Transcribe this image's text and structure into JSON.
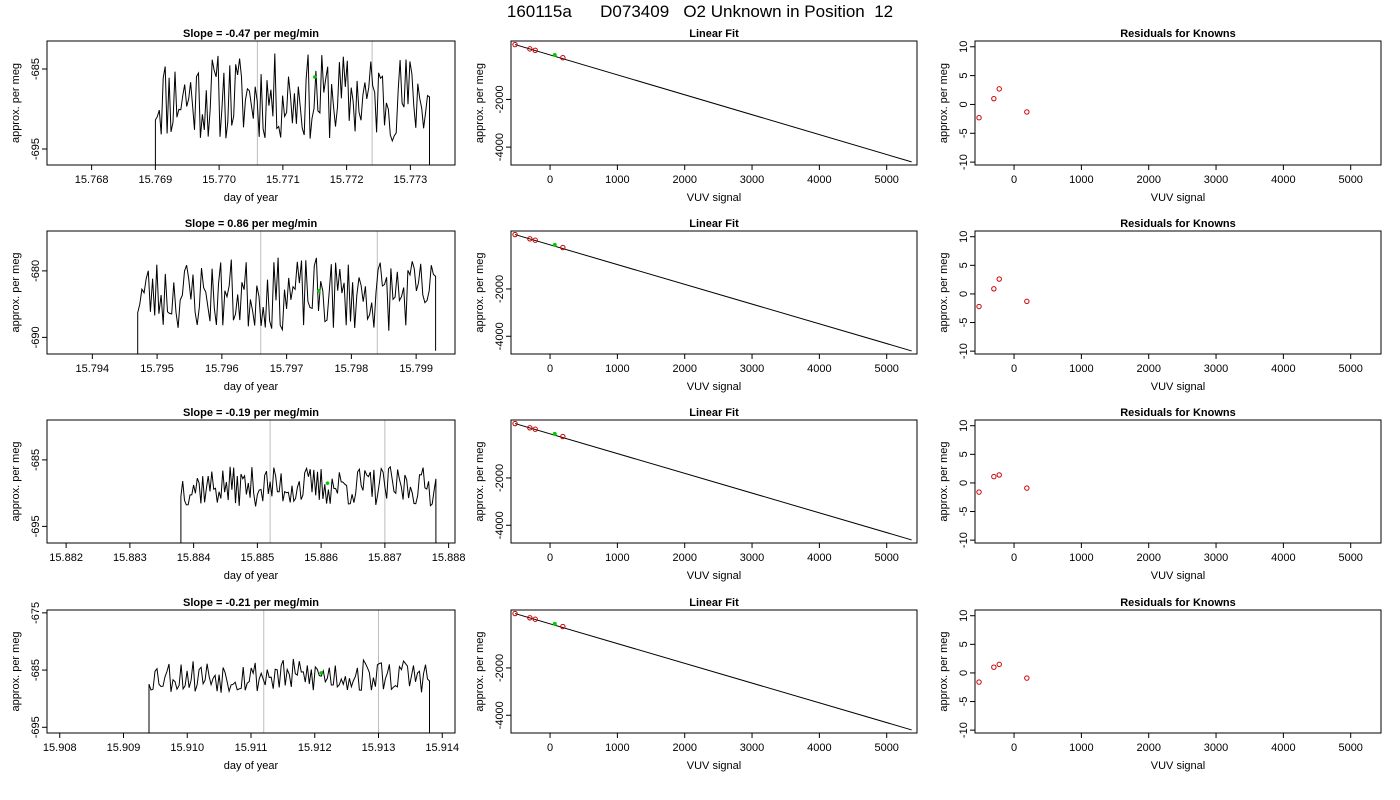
{
  "figure": {
    "title": "160115a      D073409   O2 Unknown in Position  12"
  },
  "colors": {
    "line": "#000000",
    "unknown_point": "#00cc00",
    "known_point": "#cc0000",
    "vertical_marker": "#bebebe"
  },
  "chart_data": [
    {
      "type": "line",
      "title": "Slope =  -0.47  per meg/min",
      "xlabel": "day of year",
      "ylabel": "approx. per meg",
      "xlim": [
        15.7673,
        15.7737
      ],
      "ylim": [
        -697,
        -681.5
      ],
      "xticks": [
        "15.768",
        "15.769",
        "15.770",
        "15.771",
        "15.772",
        "15.773"
      ],
      "xtick_values": [
        15.768,
        15.769,
        15.77,
        15.771,
        15.772,
        15.773
      ],
      "yticks": [
        "-695",
        "-685"
      ],
      "ytick_values": [
        -695,
        -685
      ],
      "vlines": [
        15.7706,
        15.7724
      ],
      "series": [
        {
          "x_start": 15.769,
          "x_end": 15.7733,
          "mean": -688.5,
          "amplitude": 5.5,
          "seed": 11,
          "start_y": -697,
          "end_y": -697
        }
      ],
      "unknown_point": {
        "x": 15.7715,
        "y": -686
      }
    },
    {
      "type": "scatter",
      "title": "Linear Fit",
      "xlabel": "VUV signal",
      "ylabel": "approx. per meg",
      "xlim": [
        -580,
        5450
      ],
      "ylim": [
        -4750,
        450
      ],
      "xticks": [
        "0",
        "1000",
        "2000",
        "3000",
        "4000",
        "5000"
      ],
      "xtick_values": [
        0,
        1000,
        2000,
        3000,
        4000,
        5000
      ],
      "yticks": [
        "-4000",
        "-2000"
      ],
      "ytick_values": [
        -4000,
        -2000
      ],
      "fit_line": {
        "x": [
          -520,
          5370
        ],
        "y": [
          300,
          -4620
        ]
      },
      "knowns": {
        "x": [
          -520,
          -300,
          -220,
          190
        ],
        "y": [
          300,
          120,
          60,
          -250
        ]
      },
      "unknown_point": {
        "x": 70,
        "y": -135
      }
    },
    {
      "type": "scatter",
      "title": "Residuals for Knowns",
      "xlabel": "VUV signal",
      "ylabel": "approx. per meg",
      "xlim": [
        -580,
        5450
      ],
      "ylim": [
        -10.5,
        11
      ],
      "xticks": [
        "0",
        "1000",
        "2000",
        "3000",
        "4000",
        "5000"
      ],
      "xtick_values": [
        0,
        1000,
        2000,
        3000,
        4000,
        5000
      ],
      "yticks": [
        "-10",
        "-5",
        "0",
        "5",
        "10"
      ],
      "ytick_values": [
        -10,
        -5,
        0,
        5,
        10
      ],
      "points": {
        "x": [
          -520,
          -300,
          -220,
          190
        ],
        "y": [
          -2.3,
          1.0,
          2.7,
          -1.3
        ]
      }
    },
    {
      "type": "line",
      "title": "Slope =  0.86  per meg/min",
      "xlabel": "day of year",
      "ylabel": "approx. per meg",
      "xlim": [
        15.7933,
        15.7996
      ],
      "ylim": [
        -692.5,
        -674
      ],
      "xticks": [
        "15.794",
        "15.795",
        "15.796",
        "15.797",
        "15.798",
        "15.799"
      ],
      "xtick_values": [
        15.794,
        15.795,
        15.796,
        15.797,
        15.798,
        15.799
      ],
      "yticks": [
        "-690",
        "-680"
      ],
      "ytick_values": [
        -690,
        -680
      ],
      "vlines": [
        15.7966,
        15.7984
      ],
      "series": [
        {
          "x_start": 15.7947,
          "x_end": 15.7993,
          "mean": -683.5,
          "amplitude": 5.5,
          "seed": 23,
          "start_y": -693,
          "end_y": -692
        }
      ],
      "unknown_point": {
        "x": 15.7975,
        "y": -683
      }
    },
    {
      "type": "scatter",
      "title": "Linear Fit",
      "xlabel": "VUV signal",
      "ylabel": "approx. per meg",
      "xlim": [
        -580,
        5450
      ],
      "ylim": [
        -4750,
        450
      ],
      "xticks": [
        "0",
        "1000",
        "2000",
        "3000",
        "4000",
        "5000"
      ],
      "xtick_values": [
        0,
        1000,
        2000,
        3000,
        4000,
        5000
      ],
      "yticks": [
        "-4000",
        "-2000"
      ],
      "ytick_values": [
        -4000,
        -2000
      ],
      "fit_line": {
        "x": [
          -520,
          5370
        ],
        "y": [
          300,
          -4620
        ]
      },
      "knowns": {
        "x": [
          -520,
          -300,
          -220,
          190
        ],
        "y": [
          300,
          120,
          60,
          -250
        ]
      },
      "unknown_point": {
        "x": 70,
        "y": -135
      }
    },
    {
      "type": "scatter",
      "title": "Residuals for Knowns",
      "xlabel": "VUV signal",
      "ylabel": "approx. per meg",
      "xlim": [
        -580,
        5450
      ],
      "ylim": [
        -10.5,
        11
      ],
      "xticks": [
        "0",
        "1000",
        "2000",
        "3000",
        "4000",
        "5000"
      ],
      "xtick_values": [
        0,
        1000,
        2000,
        3000,
        4000,
        5000
      ],
      "yticks": [
        "-10",
        "-5",
        "0",
        "5",
        "10"
      ],
      "ytick_values": [
        -10,
        -5,
        0,
        5,
        10
      ],
      "points": {
        "x": [
          -520,
          -300,
          -220,
          190
        ],
        "y": [
          -2.2,
          0.9,
          2.6,
          -1.3
        ]
      }
    },
    {
      "type": "line",
      "title": "Slope =  -0.19  per meg/min",
      "xlabel": "day of year",
      "ylabel": "approx. per meg",
      "xlim": [
        15.8817,
        15.8881
      ],
      "ylim": [
        -697.5,
        -679
      ],
      "xticks": [
        "15.882",
        "15.883",
        "15.884",
        "15.885",
        "15.886",
        "15.887",
        "15.888"
      ],
      "xtick_values": [
        15.882,
        15.883,
        15.884,
        15.885,
        15.886,
        15.887,
        15.888
      ],
      "yticks": [
        "-695",
        "-685"
      ],
      "ytick_values": [
        -695,
        -685
      ],
      "vlines": [
        15.8852,
        15.887
      ],
      "series": [
        {
          "x_start": 15.8838,
          "x_end": 15.8878,
          "mean": -689,
          "amplitude": 3,
          "seed": 37,
          "start_y": -698,
          "end_y": -698
        }
      ],
      "unknown_point": {
        "x": 15.8861,
        "y": -688.5
      }
    },
    {
      "type": "scatter",
      "title": "Linear Fit",
      "xlabel": "VUV signal",
      "ylabel": "approx. per meg",
      "xlim": [
        -580,
        5450
      ],
      "ylim": [
        -4750,
        450
      ],
      "xticks": [
        "0",
        "1000",
        "2000",
        "3000",
        "4000",
        "5000"
      ],
      "xtick_values": [
        0,
        1000,
        2000,
        3000,
        4000,
        5000
      ],
      "yticks": [
        "-4000",
        "-2000"
      ],
      "ytick_values": [
        -4000,
        -2000
      ],
      "fit_line": {
        "x": [
          -520,
          5370
        ],
        "y": [
          300,
          -4620
        ]
      },
      "knowns": {
        "x": [
          -520,
          -300,
          -220,
          190
        ],
        "y": [
          300,
          120,
          60,
          -250
        ]
      },
      "unknown_point": {
        "x": 70,
        "y": -135
      }
    },
    {
      "type": "scatter",
      "title": "Residuals for Knowns",
      "xlabel": "VUV signal",
      "ylabel": "approx. per meg",
      "xlim": [
        -580,
        5450
      ],
      "ylim": [
        -10.5,
        11
      ],
      "xticks": [
        "0",
        "1000",
        "2000",
        "3000",
        "4000",
        "5000"
      ],
      "xtick_values": [
        0,
        1000,
        2000,
        3000,
        4000,
        5000
      ],
      "yticks": [
        "-10",
        "-5",
        "0",
        "5",
        "10"
      ],
      "ytick_values": [
        -10,
        -5,
        0,
        5,
        10
      ],
      "points": {
        "x": [
          -520,
          -300,
          -220,
          190
        ],
        "y": [
          -1.6,
          1.1,
          1.4,
          -0.9
        ]
      }
    },
    {
      "type": "line",
      "title": "Slope =  -0.21  per meg/min",
      "xlabel": "day of year",
      "ylabel": "approx. per meg",
      "xlim": [
        15.9078,
        15.9142
      ],
      "ylim": [
        -696,
        -674.5
      ],
      "xticks": [
        "15.908",
        "15.909",
        "15.910",
        "15.911",
        "15.912",
        "15.913",
        "15.914"
      ],
      "xtick_values": [
        15.908,
        15.909,
        15.91,
        15.911,
        15.912,
        15.913,
        15.914
      ],
      "yticks": [
        "-695",
        "-685",
        "-675"
      ],
      "ytick_values": [
        -695,
        -685,
        -675
      ],
      "vlines": [
        15.9112,
        15.913
      ],
      "series": [
        {
          "x_start": 15.9094,
          "x_end": 15.9138,
          "mean": -686,
          "amplitude": 3,
          "seed": 53,
          "start_y": -696,
          "end_y": -696
        }
      ],
      "unknown_point": {
        "x": 15.9121,
        "y": -685.5
      }
    },
    {
      "type": "scatter",
      "title": "Linear Fit",
      "xlabel": "VUV signal",
      "ylabel": "approx. per meg",
      "xlim": [
        -580,
        5450
      ],
      "ylim": [
        -4750,
        450
      ],
      "xticks": [
        "0",
        "1000",
        "2000",
        "3000",
        "4000",
        "5000"
      ],
      "xtick_values": [
        0,
        1000,
        2000,
        3000,
        4000,
        5000
      ],
      "yticks": [
        "-4000",
        "-2000"
      ],
      "ytick_values": [
        -4000,
        -2000
      ],
      "fit_line": {
        "x": [
          -520,
          5370
        ],
        "y": [
          300,
          -4620
        ]
      },
      "knowns": {
        "x": [
          -520,
          -300,
          -220,
          190
        ],
        "y": [
          300,
          120,
          60,
          -250
        ]
      },
      "unknown_point": {
        "x": 70,
        "y": -135
      }
    },
    {
      "type": "scatter",
      "title": "Residuals for Knowns",
      "xlabel": "VUV signal",
      "ylabel": "approx. per meg",
      "xlim": [
        -580,
        5450
      ],
      "ylim": [
        -10.5,
        11
      ],
      "xticks": [
        "0",
        "1000",
        "2000",
        "3000",
        "4000",
        "5000"
      ],
      "xtick_values": [
        0,
        1000,
        2000,
        3000,
        4000,
        5000
      ],
      "yticks": [
        "-10",
        "-5",
        "0",
        "5",
        "10"
      ],
      "ytick_values": [
        -10,
        -5,
        0,
        5,
        10
      ],
      "points": {
        "x": [
          -520,
          -300,
          -220,
          190
        ],
        "y": [
          -1.6,
          1.0,
          1.5,
          -0.9
        ]
      }
    }
  ]
}
